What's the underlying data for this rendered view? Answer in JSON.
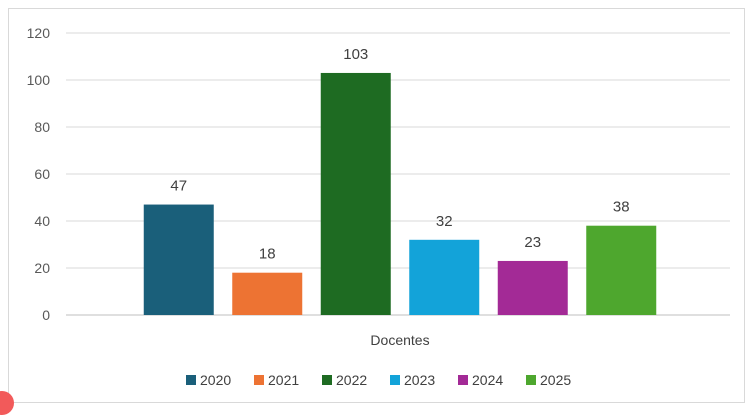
{
  "chart_data": {
    "type": "bar",
    "categories": [
      "Docentes"
    ],
    "series": [
      {
        "name": "2020",
        "values": [
          47
        ],
        "color": "#1a5f7a"
      },
      {
        "name": "2021",
        "values": [
          18
        ],
        "color": "#ed7333"
      },
      {
        "name": "2022",
        "values": [
          103
        ],
        "color": "#1e6b22"
      },
      {
        "name": "2023",
        "values": [
          32
        ],
        "color": "#13a3d9"
      },
      {
        "name": "2024",
        "values": [
          23
        ],
        "color": "#a32a96"
      },
      {
        "name": "2025",
        "values": [
          38
        ],
        "color": "#4ea72e"
      }
    ],
    "yticks": [
      0,
      20,
      40,
      60,
      80,
      100,
      120
    ],
    "ylim": [
      0,
      120
    ],
    "grid": true,
    "legend_position": "bottom",
    "data_labels": true
  }
}
